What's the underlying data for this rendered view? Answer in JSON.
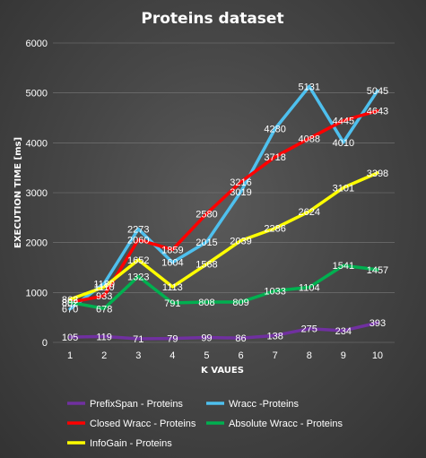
{
  "chart_data": {
    "type": "line",
    "title": "Proteins dataset",
    "xlabel": "K VAUES",
    "ylabel": "EXECUTION TIME  [ms]",
    "categories": [
      "1",
      "2",
      "3",
      "4",
      "5",
      "6",
      "7",
      "8",
      "9",
      "10"
    ],
    "ylim": [
      0,
      6000
    ],
    "yticks": [
      0,
      1000,
      2000,
      3000,
      4000,
      5000,
      6000
    ],
    "grid": true,
    "legend_position": "bottom",
    "series": [
      {
        "name": "PrefixSpan - Proteins",
        "color": "#7030a0",
        "values": [
          105,
          119,
          71,
          79,
          99,
          86,
          138,
          275,
          234,
          393
        ]
      },
      {
        "name": "Wracc -Proteins",
        "color": "#4ec0ee",
        "values": [
          670,
          1180,
          2273,
          1604,
          2015,
          3019,
          4280,
          5131,
          4010,
          5045
        ]
      },
      {
        "name": "Closed Wracc - Proteins",
        "color": "#ff0000",
        "values": [
          802,
          933,
          2060,
          1859,
          2580,
          3216,
          3718,
          4088,
          4445,
          4643
        ]
      },
      {
        "name": "Absolute Wracc - Proteins",
        "color": "#00b050",
        "values": [
          802,
          678,
          1323,
          791,
          808,
          809,
          1033,
          1104,
          1541,
          1457
        ]
      },
      {
        "name": "InfoGain - Proteins",
        "color": "#ffff00",
        "values": [
          862,
          1110,
          1652,
          1113,
          1568,
          2039,
          2286,
          2624,
          3101,
          3398
        ]
      }
    ]
  }
}
